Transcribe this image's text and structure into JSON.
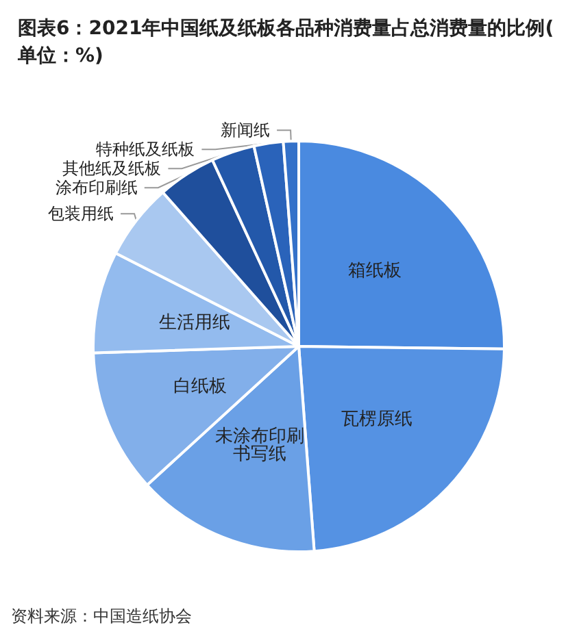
{
  "chart_data": {
    "type": "pie",
    "title": "图表6：2021年中国纸及纸板各品种消费量占总消费量的比例(单位：%)",
    "categories": [
      "箱纸板",
      "瓦楞原纸",
      "未涂布印刷书写纸",
      "白纸板",
      "生活用纸",
      "包装用纸",
      "涂布印刷纸",
      "其他纸及纸板",
      "特种纸及纸板",
      "新闻纸"
    ],
    "values": [
      25.2,
      23.6,
      14.4,
      11.3,
      8.0,
      6.0,
      4.6,
      3.4,
      2.3,
      1.2
    ],
    "colors": [
      "#4a8ae0",
      "#5592e3",
      "#6aa0e6",
      "#82afea",
      "#93bbee",
      "#a9c8f0",
      "#1f4f9c",
      "#2358aa",
      "#2a63ba",
      "#3471c9"
    ],
    "annotations": [
      "资料来源：中国造纸协会"
    ]
  }
}
